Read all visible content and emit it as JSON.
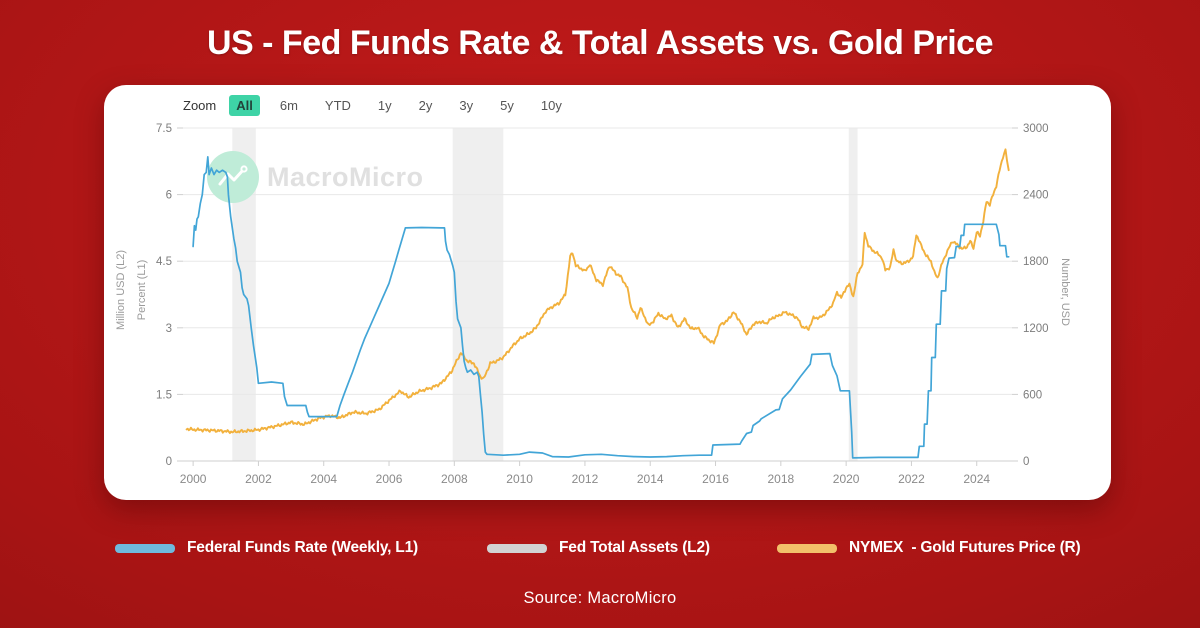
{
  "page": {
    "title": "US - Fed Funds Rate & Total Assets vs. Gold Price",
    "source": "Source: MacroMicro",
    "background_colors": {
      "center": "#c41b1b",
      "edge": "#7c0e0e"
    }
  },
  "toolbar": {
    "zoom_label": "Zoom",
    "ranges": [
      "All",
      "6m",
      "YTD",
      "1y",
      "2y",
      "3y",
      "5y",
      "10y"
    ],
    "selected": "All",
    "selected_bg": "#3ed3a6"
  },
  "watermark": {
    "brand": "MacroMicro",
    "icon": "macromicro-logo-icon",
    "circle_color": "#bfecd8",
    "text_color": "#e0e0e0"
  },
  "legend": [
    {
      "label": "Federal Funds Rate (Weekly, L1)",
      "color": "#6fbadd"
    },
    {
      "label": "Fed Total Assets (L2)",
      "color": "#d2d2d2"
    },
    {
      "label": "NYMEX  - Gold Futures Price (R)",
      "color": "#f2c06a"
    }
  ],
  "chart_data": {
    "type": "line",
    "title": "US - Fed Funds Rate & Total Assets vs. Gold Price",
    "grid": true,
    "left_axis": {
      "titles": [
        "Million USD (L2)",
        "Percent (L1)"
      ],
      "ticks": [
        0,
        1.5,
        3,
        4.5,
        6,
        7.5
      ],
      "range": [
        0,
        7.5
      ]
    },
    "right_axis": {
      "title": "Number, USD",
      "ticks": [
        0,
        600,
        1200,
        1800,
        2400,
        3000
      ],
      "range": [
        0,
        3000
      ]
    },
    "x_axis": {
      "ticks": [
        2000,
        2002,
        2004,
        2006,
        2008,
        2010,
        2012,
        2014,
        2016,
        2018,
        2020,
        2022,
        2024
      ],
      "range": [
        1999.69,
        2025.08
      ]
    },
    "recession_bands": [
      [
        2001.2,
        2001.92
      ],
      [
        2007.95,
        2009.5
      ],
      [
        2020.08,
        2020.35
      ]
    ],
    "series": [
      {
        "name": "Federal Funds Rate (Weekly, L1)",
        "axis": "left",
        "unit": "Percent",
        "color": "#42a5d7",
        "visible": true,
        "points": [
          [
            2000.0,
            4.83
          ],
          [
            2000.04,
            5.3
          ],
          [
            2000.08,
            5.2
          ],
          [
            2000.12,
            5.45
          ],
          [
            2000.16,
            5.5
          ],
          [
            2000.22,
            5.8
          ],
          [
            2000.28,
            6.0
          ],
          [
            2000.34,
            6.45
          ],
          [
            2000.4,
            6.5
          ],
          [
            2000.45,
            6.85
          ],
          [
            2000.49,
            6.45
          ],
          [
            2000.56,
            6.6
          ],
          [
            2000.64,
            6.45
          ],
          [
            2000.72,
            6.55
          ],
          [
            2000.8,
            6.5
          ],
          [
            2000.9,
            6.55
          ],
          [
            2001.0,
            6.5
          ],
          [
            2001.05,
            6.4
          ],
          [
            2001.08,
            6.0
          ],
          [
            2001.15,
            5.5
          ],
          [
            2001.25,
            5.0
          ],
          [
            2001.3,
            4.8
          ],
          [
            2001.35,
            4.5
          ],
          [
            2001.45,
            4.25
          ],
          [
            2001.5,
            3.9
          ],
          [
            2001.55,
            3.75
          ],
          [
            2001.65,
            3.65
          ],
          [
            2001.7,
            3.5
          ],
          [
            2001.78,
            3.0
          ],
          [
            2001.85,
            2.6
          ],
          [
            2001.95,
            2.1
          ],
          [
            2002.0,
            1.75
          ],
          [
            2002.4,
            1.78
          ],
          [
            2002.75,
            1.75
          ],
          [
            2002.8,
            1.45
          ],
          [
            2002.88,
            1.25
          ],
          [
            2003.45,
            1.25
          ],
          [
            2003.5,
            1.1
          ],
          [
            2003.55,
            1.0
          ],
          [
            2004.4,
            1.0
          ],
          [
            2004.5,
            1.25
          ],
          [
            2004.62,
            1.5
          ],
          [
            2004.75,
            1.75
          ],
          [
            2004.88,
            2.0
          ],
          [
            2005.0,
            2.25
          ],
          [
            2005.12,
            2.5
          ],
          [
            2005.25,
            2.75
          ],
          [
            2005.4,
            3.0
          ],
          [
            2005.55,
            3.25
          ],
          [
            2005.7,
            3.5
          ],
          [
            2005.85,
            3.75
          ],
          [
            2006.0,
            4.0
          ],
          [
            2006.1,
            4.25
          ],
          [
            2006.2,
            4.5
          ],
          [
            2006.3,
            4.75
          ],
          [
            2006.4,
            5.0
          ],
          [
            2006.5,
            5.25
          ],
          [
            2007.0,
            5.26
          ],
          [
            2007.6,
            5.25
          ],
          [
            2007.7,
            5.25
          ],
          [
            2007.73,
            4.95
          ],
          [
            2007.78,
            4.75
          ],
          [
            2007.85,
            4.65
          ],
          [
            2007.95,
            4.4
          ],
          [
            2008.0,
            4.25
          ],
          [
            2008.05,
            3.6
          ],
          [
            2008.1,
            3.2
          ],
          [
            2008.2,
            3.0
          ],
          [
            2008.25,
            2.6
          ],
          [
            2008.3,
            2.25
          ],
          [
            2008.35,
            2.1
          ],
          [
            2008.4,
            2.0
          ],
          [
            2008.5,
            2.05
          ],
          [
            2008.6,
            1.95
          ],
          [
            2008.7,
            2.0
          ],
          [
            2008.75,
            1.9
          ],
          [
            2008.8,
            1.5
          ],
          [
            2008.85,
            1.1
          ],
          [
            2008.9,
            0.6
          ],
          [
            2008.95,
            0.2
          ],
          [
            2009.0,
            0.15
          ],
          [
            2009.5,
            0.13
          ],
          [
            2010.0,
            0.15
          ],
          [
            2010.3,
            0.2
          ],
          [
            2010.7,
            0.18
          ],
          [
            2011.0,
            0.1
          ],
          [
            2011.5,
            0.09
          ],
          [
            2012.0,
            0.14
          ],
          [
            2012.5,
            0.15
          ],
          [
            2013.0,
            0.12
          ],
          [
            2013.5,
            0.1
          ],
          [
            2014.0,
            0.09
          ],
          [
            2014.5,
            0.1
          ],
          [
            2015.0,
            0.12
          ],
          [
            2015.5,
            0.13
          ],
          [
            2015.88,
            0.13
          ],
          [
            2015.92,
            0.36
          ],
          [
            2016.75,
            0.38
          ],
          [
            2016.8,
            0.45
          ],
          [
            2016.95,
            0.62
          ],
          [
            2017.1,
            0.65
          ],
          [
            2017.15,
            0.8
          ],
          [
            2017.35,
            0.9
          ],
          [
            2017.4,
            0.95
          ],
          [
            2017.85,
            1.15
          ],
          [
            2017.95,
            1.16
          ],
          [
            2018.05,
            1.4
          ],
          [
            2018.3,
            1.6
          ],
          [
            2018.6,
            1.9
          ],
          [
            2018.9,
            2.18
          ],
          [
            2018.95,
            2.4
          ],
          [
            2019.5,
            2.42
          ],
          [
            2019.58,
            2.15
          ],
          [
            2019.72,
            1.92
          ],
          [
            2019.82,
            1.58
          ],
          [
            2020.1,
            1.58
          ],
          [
            2020.17,
            0.65
          ],
          [
            2020.2,
            0.07
          ],
          [
            2021.0,
            0.08
          ],
          [
            2022.0,
            0.08
          ],
          [
            2022.2,
            0.08
          ],
          [
            2022.24,
            0.33
          ],
          [
            2022.38,
            0.33
          ],
          [
            2022.4,
            0.83
          ],
          [
            2022.48,
            0.83
          ],
          [
            2022.52,
            1.58
          ],
          [
            2022.6,
            1.58
          ],
          [
            2022.62,
            2.33
          ],
          [
            2022.73,
            2.33
          ],
          [
            2022.76,
            3.08
          ],
          [
            2022.88,
            3.08
          ],
          [
            2022.92,
            3.83
          ],
          [
            2023.05,
            3.83
          ],
          [
            2023.08,
            4.33
          ],
          [
            2023.15,
            4.57
          ],
          [
            2023.32,
            4.58
          ],
          [
            2023.37,
            4.83
          ],
          [
            2023.48,
            4.83
          ],
          [
            2023.52,
            5.08
          ],
          [
            2023.6,
            5.08
          ],
          [
            2023.63,
            5.33
          ],
          [
            2024.6,
            5.33
          ],
          [
            2024.68,
            5.1
          ],
          [
            2024.71,
            4.85
          ],
          [
            2024.88,
            4.85
          ],
          [
            2024.92,
            4.6
          ],
          [
            2024.98,
            4.6
          ]
        ]
      },
      {
        "name": "Fed Total Assets (L2)",
        "axis": "left",
        "unit": "Million USD",
        "color": "#d2d2d2",
        "visible": false,
        "points": []
      },
      {
        "name": "NYMEX - Gold Futures Price (R)",
        "axis": "right",
        "unit": "USD",
        "color": "#f2b13d",
        "visible": true,
        "points": [
          [
            1999.8,
            290
          ],
          [
            2000.0,
            283
          ],
          [
            2000.4,
            278
          ],
          [
            2000.8,
            272
          ],
          [
            2001.2,
            262
          ],
          [
            2001.6,
            270
          ],
          [
            2002.0,
            282
          ],
          [
            2002.5,
            312
          ],
          [
            2003.0,
            348
          ],
          [
            2003.4,
            330
          ],
          [
            2003.9,
            390
          ],
          [
            2004.2,
            408
          ],
          [
            2004.5,
            390
          ],
          [
            2004.9,
            440
          ],
          [
            2005.3,
            428
          ],
          [
            2005.7,
            465
          ],
          [
            2006.0,
            545
          ],
          [
            2006.35,
            630
          ],
          [
            2006.6,
            575
          ],
          [
            2006.9,
            625
          ],
          [
            2007.3,
            660
          ],
          [
            2007.6,
            700
          ],
          [
            2007.9,
            800
          ],
          [
            2008.2,
            975
          ],
          [
            2008.4,
            900
          ],
          [
            2008.6,
            880
          ],
          [
            2008.8,
            760
          ],
          [
            2008.9,
            740
          ],
          [
            2009.1,
            880
          ],
          [
            2009.3,
            900
          ],
          [
            2009.5,
            935
          ],
          [
            2009.8,
            1040
          ],
          [
            2010.0,
            1100
          ],
          [
            2010.3,
            1150
          ],
          [
            2010.5,
            1200
          ],
          [
            2010.8,
            1350
          ],
          [
            2011.0,
            1390
          ],
          [
            2011.2,
            1420
          ],
          [
            2011.4,
            1500
          ],
          [
            2011.55,
            1840
          ],
          [
            2011.62,
            1880
          ],
          [
            2011.72,
            1760
          ],
          [
            2011.85,
            1740
          ],
          [
            2012.0,
            1710
          ],
          [
            2012.15,
            1770
          ],
          [
            2012.35,
            1630
          ],
          [
            2012.55,
            1590
          ],
          [
            2012.75,
            1760
          ],
          [
            2012.95,
            1690
          ],
          [
            2013.1,
            1660
          ],
          [
            2013.3,
            1560
          ],
          [
            2013.42,
            1380
          ],
          [
            2013.6,
            1290
          ],
          [
            2013.7,
            1380
          ],
          [
            2013.95,
            1220
          ],
          [
            2014.1,
            1260
          ],
          [
            2014.25,
            1330
          ],
          [
            2014.45,
            1280
          ],
          [
            2014.65,
            1310
          ],
          [
            2014.85,
            1200
          ],
          [
            2015.05,
            1280
          ],
          [
            2015.25,
            1190
          ],
          [
            2015.45,
            1200
          ],
          [
            2015.65,
            1120
          ],
          [
            2015.85,
            1080
          ],
          [
            2015.95,
            1062
          ],
          [
            2016.15,
            1230
          ],
          [
            2016.35,
            1260
          ],
          [
            2016.55,
            1340
          ],
          [
            2016.75,
            1260
          ],
          [
            2016.95,
            1140
          ],
          [
            2017.15,
            1230
          ],
          [
            2017.35,
            1255
          ],
          [
            2017.55,
            1240
          ],
          [
            2017.75,
            1290
          ],
          [
            2017.95,
            1310
          ],
          [
            2018.1,
            1340
          ],
          [
            2018.3,
            1320
          ],
          [
            2018.5,
            1290
          ],
          [
            2018.65,
            1210
          ],
          [
            2018.85,
            1190
          ],
          [
            2019.0,
            1290
          ],
          [
            2019.2,
            1290
          ],
          [
            2019.4,
            1340
          ],
          [
            2019.6,
            1420
          ],
          [
            2019.72,
            1520
          ],
          [
            2019.85,
            1470
          ],
          [
            2020.0,
            1560
          ],
          [
            2020.1,
            1590
          ],
          [
            2020.22,
            1480
          ],
          [
            2020.35,
            1690
          ],
          [
            2020.5,
            1770
          ],
          [
            2020.57,
            2060
          ],
          [
            2020.68,
            1940
          ],
          [
            2020.8,
            1900
          ],
          [
            2020.95,
            1870
          ],
          [
            2021.1,
            1830
          ],
          [
            2021.2,
            1720
          ],
          [
            2021.35,
            1745
          ],
          [
            2021.45,
            1900
          ],
          [
            2021.55,
            1800
          ],
          [
            2021.7,
            1780
          ],
          [
            2021.85,
            1790
          ],
          [
            2021.95,
            1810
          ],
          [
            2022.05,
            1840
          ],
          [
            2022.15,
            2040
          ],
          [
            2022.3,
            1940
          ],
          [
            2022.45,
            1850
          ],
          [
            2022.6,
            1800
          ],
          [
            2022.7,
            1700
          ],
          [
            2022.8,
            1650
          ],
          [
            2022.95,
            1790
          ],
          [
            2023.1,
            1890
          ],
          [
            2023.25,
            1980
          ],
          [
            2023.4,
            1950
          ],
          [
            2023.55,
            1910
          ],
          [
            2023.7,
            1930
          ],
          [
            2023.8,
            1980
          ],
          [
            2023.9,
            1920
          ],
          [
            2024.0,
            2060
          ],
          [
            2024.1,
            2030
          ],
          [
            2024.2,
            2160
          ],
          [
            2024.3,
            2340
          ],
          [
            2024.4,
            2310
          ],
          [
            2024.5,
            2400
          ],
          [
            2024.6,
            2480
          ],
          [
            2024.7,
            2620
          ],
          [
            2024.8,
            2740
          ],
          [
            2024.88,
            2800
          ],
          [
            2024.93,
            2700
          ],
          [
            2024.98,
            2620
          ]
        ]
      }
    ]
  }
}
